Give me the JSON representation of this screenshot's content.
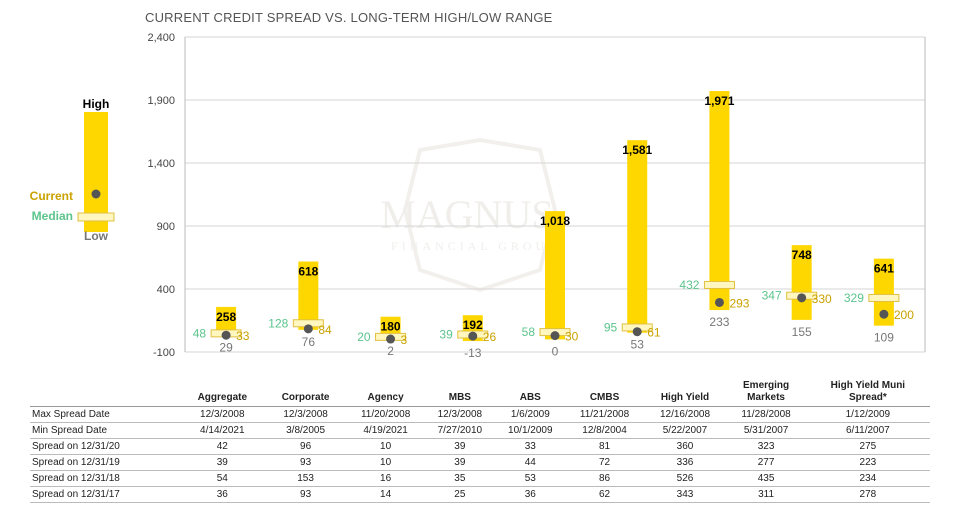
{
  "chart_data": {
    "type": "range",
    "title": "CURRENT CREDIT SPREAD VS. LONG-TERM HIGH/LOW RANGE",
    "ylim": [
      -100,
      2400
    ],
    "yticks": [
      "2,400",
      "1,900",
      "1,400",
      "900",
      "400",
      "-100"
    ],
    "ytick_values": [
      2400,
      1900,
      1400,
      900,
      400,
      -100
    ],
    "categories": [
      "Aggregate",
      "Corporate",
      "Agency",
      "MBS",
      "ABS",
      "CMBS",
      "High Yield",
      "Emerging Markets",
      "High Yield Muni Spread*"
    ],
    "high": [
      258,
      618,
      180,
      192,
      1018,
      1581,
      1971,
      748,
      641
    ],
    "low": [
      29,
      76,
      2,
      -13,
      0,
      53,
      233,
      155,
      109
    ],
    "median": [
      48,
      128,
      20,
      39,
      58,
      95,
      432,
      347,
      329
    ],
    "current": [
      33,
      84,
      3,
      26,
      30,
      61,
      293,
      330,
      200
    ],
    "high_labels": [
      "258",
      "618",
      "180",
      "192",
      "1,018",
      "1,581",
      "1,971",
      "748",
      "641"
    ],
    "low_labels": [
      "29",
      "76",
      "2",
      "-13",
      "0",
      "53",
      "233",
      "155",
      "109"
    ],
    "median_labels": [
      "48",
      "128",
      "20",
      "39",
      "58",
      "95",
      "432",
      "347",
      "329"
    ],
    "current_labels": [
      "33",
      "84",
      "3",
      "26",
      "30",
      "61",
      "293",
      "330",
      "200"
    ],
    "legend": {
      "high": "High",
      "current": "Current",
      "median": "Median",
      "low": "Low"
    }
  },
  "watermark": {
    "name": "MAGNUS",
    "subtitle": "FINANCIAL GROUP"
  },
  "colors": {
    "bar": "#FFD700",
    "current_text": "#C9A200",
    "median_text": "#5CC48C",
    "low_text": "#777777",
    "high_text": "#000000",
    "dot": "#555555",
    "median_band": "#FFF6C0",
    "median_band_border": "#E0C040"
  },
  "table": {
    "headers": [
      "Aggregate",
      "Corporate",
      "Agency",
      "MBS",
      "ABS",
      "CMBS",
      "High Yield",
      "Emerging\nMarkets",
      "High Yield Muni\nSpread*"
    ],
    "rows": [
      {
        "label": "Max Spread Date",
        "values": [
          "12/3/2008",
          "12/3/2008",
          "11/20/2008",
          "12/3/2008",
          "1/6/2009",
          "11/21/2008",
          "12/16/2008",
          "11/28/2008",
          "1/12/2009"
        ]
      },
      {
        "label": "Min Spread Date",
        "values": [
          "4/14/2021",
          "3/8/2005",
          "4/19/2021",
          "7/27/2010",
          "10/1/2009",
          "12/8/2004",
          "5/22/2007",
          "5/31/2007",
          "6/11/2007"
        ]
      },
      {
        "label": "Spread on 12/31/20",
        "values": [
          "42",
          "96",
          "10",
          "39",
          "33",
          "81",
          "360",
          "323",
          "275"
        ]
      },
      {
        "label": "Spread on 12/31/19",
        "values": [
          "39",
          "93",
          "10",
          "39",
          "44",
          "72",
          "336",
          "277",
          "223"
        ]
      },
      {
        "label": "Spread on 12/31/18",
        "values": [
          "54",
          "153",
          "16",
          "35",
          "53",
          "86",
          "526",
          "435",
          "234"
        ]
      },
      {
        "label": "Spread on 12/31/17",
        "values": [
          "36",
          "93",
          "14",
          "25",
          "36",
          "62",
          "343",
          "311",
          "278"
        ]
      }
    ]
  }
}
